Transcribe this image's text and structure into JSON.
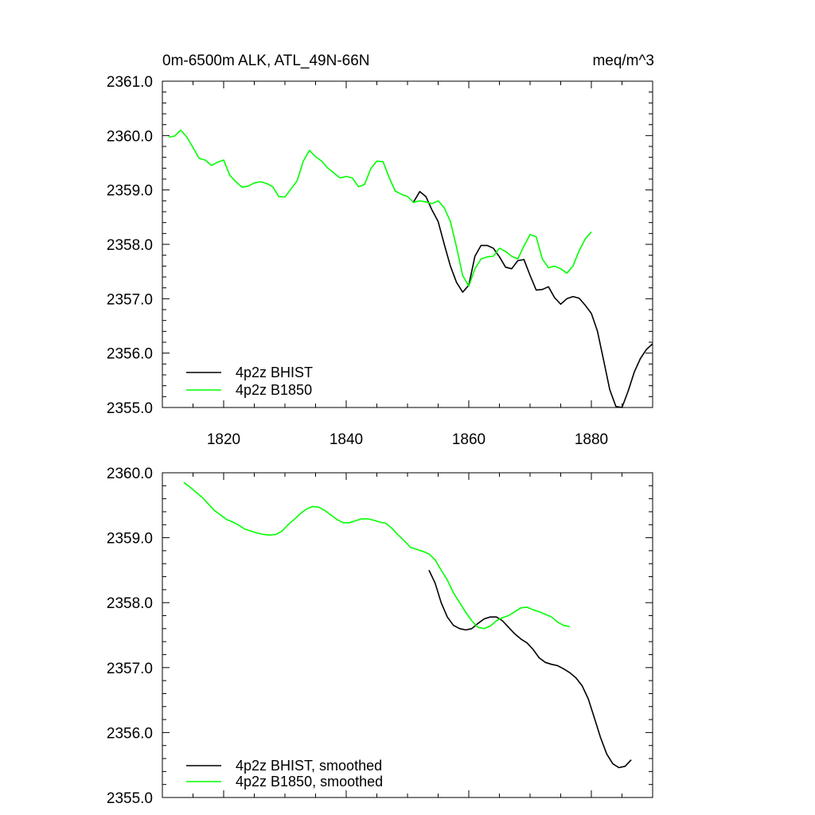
{
  "chart_data": [
    {
      "type": "line",
      "title_left": "0m-6500m ALK, ATL_49N-66N",
      "title_right": "meq/m^3",
      "xlim": [
        1810,
        1890
      ],
      "ylim": [
        2355.0,
        2361.0
      ],
      "x_ticks": [
        1820,
        1840,
        1860,
        1880
      ],
      "x_tick_labels": [
        "1820",
        "1840",
        "1860",
        "1880"
      ],
      "y_ticks": [
        2355.0,
        2356.0,
        2357.0,
        2358.0,
        2359.0,
        2360.0,
        2361.0
      ],
      "y_tick_labels": [
        "2355.0",
        "2356.0",
        "2357.0",
        "2358.0",
        "2359.0",
        "2360.0",
        "2361.0"
      ],
      "series": [
        {
          "name": "4p2z BHIST",
          "color": "#000000",
          "x": [
            1851,
            1852,
            1853,
            1854,
            1855,
            1856,
            1857,
            1858,
            1859,
            1860,
            1861,
            1862,
            1863,
            1864,
            1865,
            1866,
            1867,
            1868,
            1869,
            1870,
            1871,
            1872,
            1873,
            1874,
            1875,
            1876,
            1877,
            1878,
            1879,
            1880,
            1881,
            1882,
            1883,
            1884,
            1885,
            1886,
            1887,
            1888,
            1889,
            1890
          ],
          "y": [
            2358.78,
            2358.97,
            2358.88,
            2358.63,
            2358.42,
            2358.0,
            2357.6,
            2357.3,
            2357.12,
            2357.25,
            2357.78,
            2357.98,
            2357.98,
            2357.93,
            2357.77,
            2357.58,
            2357.55,
            2357.7,
            2357.72,
            2357.43,
            2357.16,
            2357.17,
            2357.22,
            2357.02,
            2356.9,
            2357.0,
            2357.04,
            2357.01,
            2356.88,
            2356.73,
            2356.4,
            2355.87,
            2355.33,
            2355.02,
            2355.0,
            2355.3,
            2355.65,
            2355.9,
            2356.07,
            2356.17
          ]
        },
        {
          "name": "4p2z B1850",
          "color": "#00ff00",
          "x": [
            1811,
            1812,
            1813,
            1814,
            1815,
            1816,
            1817,
            1818,
            1819,
            1820,
            1821,
            1822,
            1823,
            1824,
            1825,
            1826,
            1827,
            1828,
            1829,
            1830,
            1831,
            1832,
            1833,
            1834,
            1835,
            1836,
            1837,
            1838,
            1839,
            1840,
            1841,
            1842,
            1843,
            1844,
            1845,
            1846,
            1847,
            1848,
            1849,
            1850,
            1851,
            1852,
            1853,
            1854,
            1855,
            1856,
            1857,
            1858,
            1859,
            1860,
            1861,
            1862,
            1863,
            1864,
            1865,
            1866,
            1867,
            1868,
            1869,
            1870,
            1871,
            1872,
            1873,
            1874,
            1875,
            1876,
            1877,
            1878,
            1879,
            1880
          ],
          "y": [
            2359.97,
            2359.99,
            2360.1,
            2359.97,
            2359.78,
            2359.58,
            2359.55,
            2359.45,
            2359.51,
            2359.55,
            2359.27,
            2359.15,
            2359.05,
            2359.07,
            2359.13,
            2359.15,
            2359.12,
            2359.06,
            2358.88,
            2358.87,
            2359.02,
            2359.17,
            2359.53,
            2359.73,
            2359.61,
            2359.53,
            2359.4,
            2359.31,
            2359.22,
            2359.25,
            2359.22,
            2359.06,
            2359.1,
            2359.39,
            2359.53,
            2359.52,
            2359.23,
            2358.98,
            2358.92,
            2358.88,
            2358.77,
            2358.8,
            2358.78,
            2358.75,
            2358.8,
            2358.67,
            2358.42,
            2357.95,
            2357.43,
            2357.23,
            2357.55,
            2357.73,
            2357.77,
            2357.78,
            2357.93,
            2357.87,
            2357.78,
            2357.73,
            2357.97,
            2358.18,
            2358.14,
            2357.73,
            2357.57,
            2357.6,
            2357.55,
            2357.47,
            2357.6,
            2357.88,
            2358.1,
            2358.23
          ]
        }
      ]
    },
    {
      "type": "line",
      "xlim": [
        1810,
        1890
      ],
      "ylim": [
        2355.0,
        2360.0
      ],
      "x_ticks": [
        1820,
        1840,
        1860,
        1880
      ],
      "y_ticks": [
        2355.0,
        2356.0,
        2357.0,
        2358.0,
        2359.0,
        2360.0
      ],
      "y_tick_labels": [
        "2355.0",
        "2356.0",
        "2357.0",
        "2358.0",
        "2359.0",
        "2360.0"
      ],
      "series": [
        {
          "name": "4p2z BHIST, smoothed",
          "color": "#000000",
          "x": [
            1853.5,
            1854.5,
            1855.5,
            1856.5,
            1857.5,
            1858.5,
            1859.5,
            1860.5,
            1861.5,
            1862.5,
            1863.5,
            1864.5,
            1865.5,
            1866.5,
            1867.5,
            1868.5,
            1869.5,
            1870.5,
            1871.5,
            1872.5,
            1873.5,
            1874.5,
            1875.5,
            1876.5,
            1877.5,
            1878.5,
            1879.5,
            1880.5,
            1881.5,
            1882.5,
            1883.5,
            1884.5,
            1885.5,
            1886.5
          ],
          "y": [
            2358.5,
            2358.3,
            2358.0,
            2357.78,
            2357.65,
            2357.6,
            2357.58,
            2357.6,
            2357.68,
            2357.75,
            2357.78,
            2357.78,
            2357.72,
            2357.62,
            2357.52,
            2357.44,
            2357.38,
            2357.28,
            2357.15,
            2357.08,
            2357.05,
            2357.03,
            2356.98,
            2356.92,
            2356.84,
            2356.72,
            2356.52,
            2356.22,
            2355.92,
            2355.67,
            2355.52,
            2355.46,
            2355.48,
            2355.58
          ]
        },
        {
          "name": "4p2z B1850, smoothed",
          "color": "#00ff00",
          "x": [
            1813.5,
            1814.5,
            1815.5,
            1816.5,
            1817.5,
            1818.5,
            1819.5,
            1820.5,
            1821.5,
            1822.5,
            1823.5,
            1824.5,
            1825.5,
            1826.5,
            1827.5,
            1828.5,
            1829.5,
            1830.5,
            1831.5,
            1832.5,
            1833.5,
            1834.5,
            1835.5,
            1836.5,
            1837.5,
            1838.5,
            1839.5,
            1840.5,
            1841.5,
            1842.5,
            1843.5,
            1844.5,
            1845.5,
            1846.5,
            1847.5,
            1848.5,
            1849.5,
            1850.5,
            1851.5,
            1852.5,
            1853.5,
            1854.5,
            1855.5,
            1856.5,
            1857.5,
            1858.5,
            1859.5,
            1860.5,
            1861.5,
            1862.5,
            1863.5,
            1864.5,
            1865.5,
            1866.5,
            1867.5,
            1868.5,
            1869.5,
            1870.5,
            1871.5,
            1872.5,
            1873.5,
            1874.5,
            1875.5,
            1876.5
          ],
          "y": [
            2359.85,
            2359.78,
            2359.7,
            2359.62,
            2359.52,
            2359.42,
            2359.35,
            2359.28,
            2359.24,
            2359.19,
            2359.13,
            2359.1,
            2359.07,
            2359.05,
            2359.04,
            2359.05,
            2359.1,
            2359.2,
            2359.28,
            2359.37,
            2359.44,
            2359.48,
            2359.47,
            2359.42,
            2359.35,
            2359.28,
            2359.23,
            2359.23,
            2359.26,
            2359.29,
            2359.29,
            2359.27,
            2359.24,
            2359.22,
            2359.14,
            2359.04,
            2358.95,
            2358.85,
            2358.82,
            2358.79,
            2358.75,
            2358.66,
            2358.5,
            2358.35,
            2358.15,
            2358.0,
            2357.85,
            2357.72,
            2357.62,
            2357.6,
            2357.64,
            2357.72,
            2357.77,
            2357.8,
            2357.86,
            2357.92,
            2357.93,
            2357.89,
            2357.86,
            2357.82,
            2357.78,
            2357.7,
            2357.65,
            2357.63
          ]
        }
      ]
    }
  ]
}
